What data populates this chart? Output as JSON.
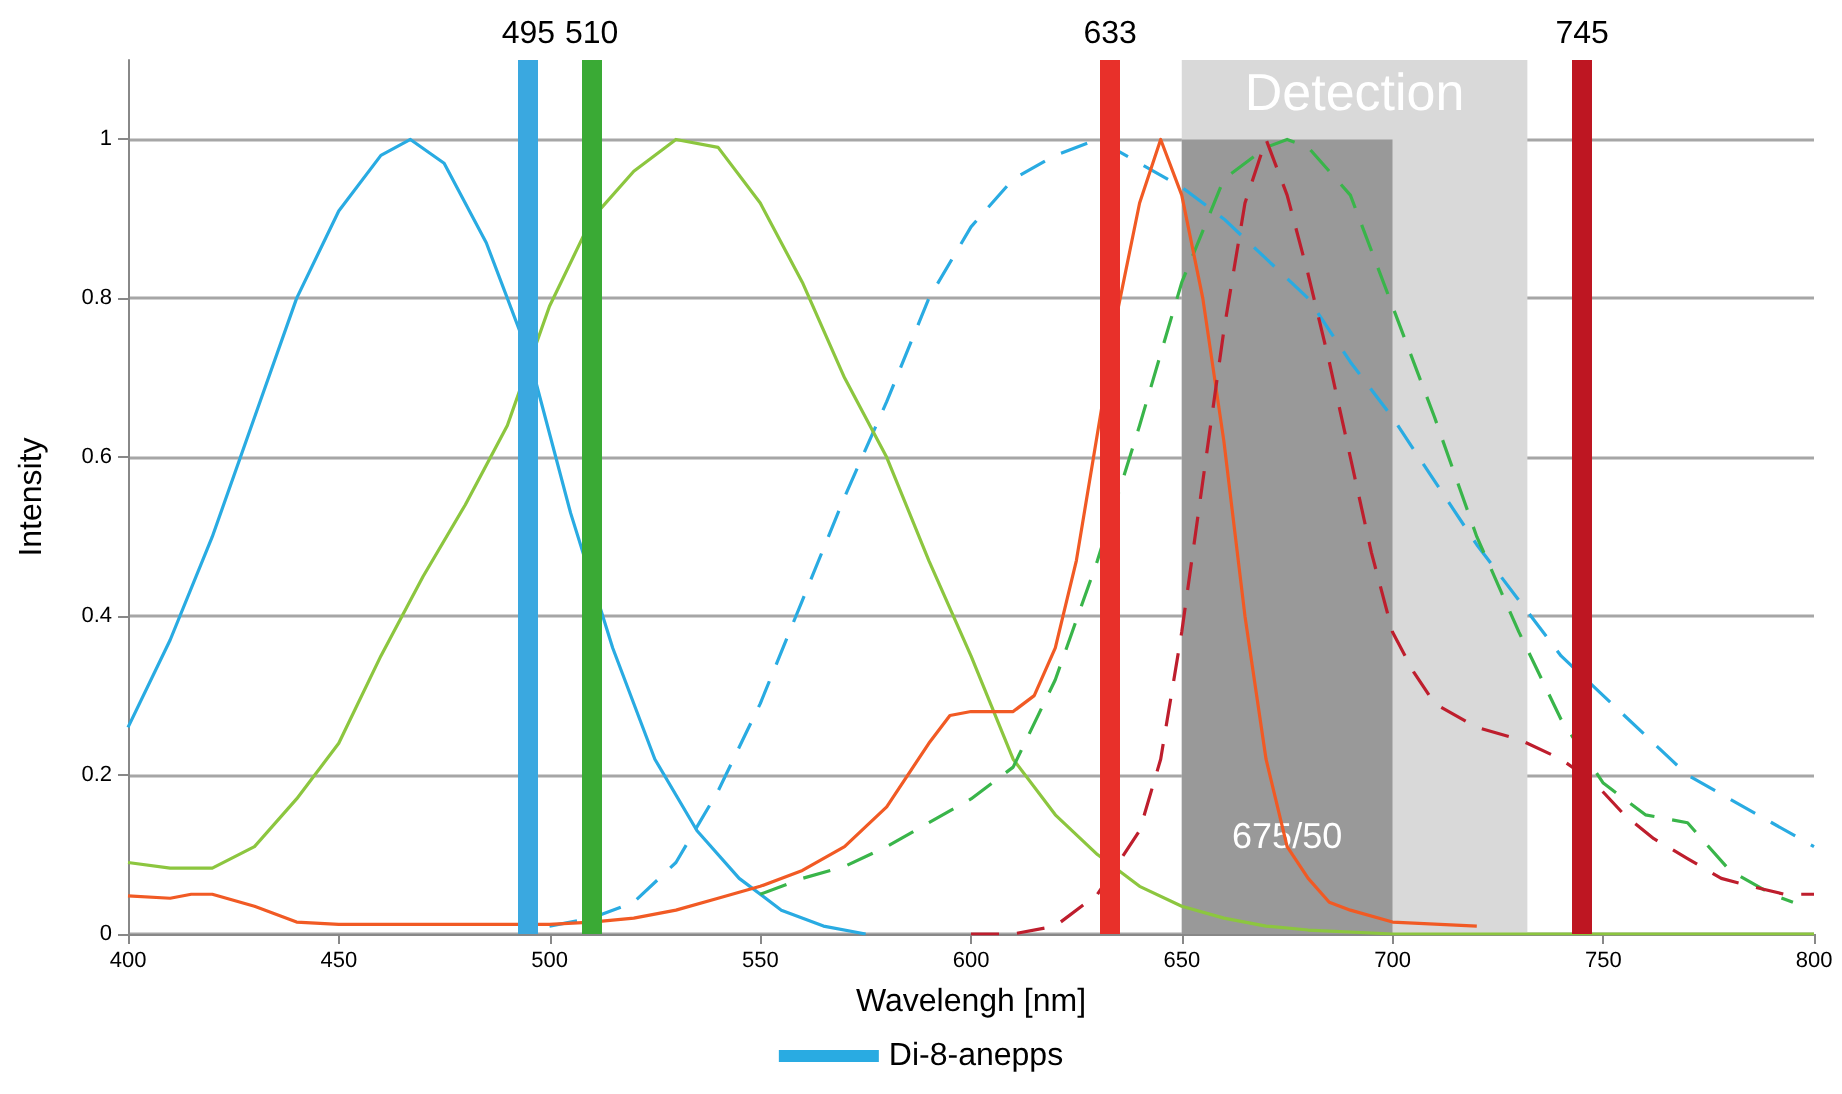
{
  "chart_data": {
    "type": "line",
    "xlabel": "Wavelengh [nm]",
    "ylabel": "Intensity",
    "xlim": [
      400,
      800
    ],
    "xticks": [
      400,
      450,
      500,
      550,
      600,
      650,
      700,
      750,
      800
    ],
    "ylim": [
      0,
      1.1
    ],
    "yticks": [
      0,
      0.2,
      0.4,
      0.6,
      0.8,
      1
    ],
    "grid": "y",
    "legend": "bottom",
    "marker": "none",
    "series": [
      {
        "name": "Di-8-anepps",
        "color": "#29abe2",
        "line_style": "solid",
        "x": [
          400,
          410,
          420,
          430,
          440,
          450,
          460,
          467,
          475,
          485,
          495,
          505,
          515,
          525,
          535,
          545,
          555,
          565,
          575
        ],
        "values": [
          0.26,
          0.37,
          0.5,
          0.65,
          0.8,
          0.91,
          0.98,
          1.0,
          0.97,
          0.87,
          0.73,
          0.53,
          0.36,
          0.22,
          0.13,
          0.07,
          0.03,
          0.01,
          0.0
        ]
      },
      {
        "color": "#29abe2",
        "line_style": "dashed",
        "x": [
          500,
          510,
          520,
          530,
          540,
          550,
          560,
          570,
          580,
          590,
          600,
          610,
          620,
          630,
          640,
          650,
          660,
          670,
          680,
          690,
          700,
          710,
          720,
          730,
          740,
          750,
          760,
          770,
          780,
          790,
          800
        ],
        "values": [
          0.01,
          0.02,
          0.04,
          0.09,
          0.18,
          0.29,
          0.42,
          0.55,
          0.67,
          0.8,
          0.89,
          0.95,
          0.98,
          1.0,
          0.97,
          0.94,
          0.9,
          0.85,
          0.8,
          0.72,
          0.65,
          0.57,
          0.49,
          0.42,
          0.35,
          0.3,
          0.25,
          0.2,
          0.17,
          0.14,
          0.11
        ]
      },
      {
        "color": "#8cc63f",
        "line_style": "solid",
        "x": [
          400,
          410,
          420,
          430,
          440,
          450,
          460,
          470,
          480,
          490,
          500,
          510,
          520,
          530,
          540,
          550,
          560,
          570,
          580,
          590,
          600,
          610,
          620,
          630,
          640,
          650,
          660,
          670,
          680,
          700,
          800
        ],
        "values": [
          0.09,
          0.083,
          0.083,
          0.11,
          0.17,
          0.24,
          0.35,
          0.45,
          0.54,
          0.64,
          0.79,
          0.9,
          0.96,
          1.0,
          0.99,
          0.92,
          0.82,
          0.7,
          0.6,
          0.47,
          0.35,
          0.22,
          0.15,
          0.1,
          0.06,
          0.035,
          0.02,
          0.01,
          0.005,
          0.0,
          0.0
        ]
      },
      {
        "color": "#39b54a",
        "line_style": "dashed",
        "x": [
          550,
          560,
          570,
          580,
          590,
          600,
          610,
          620,
          630,
          640,
          650,
          660,
          670,
          675,
          680,
          690,
          700,
          710,
          720,
          730,
          740,
          750,
          760,
          770,
          780,
          790,
          795
        ],
        "values": [
          0.05,
          0.07,
          0.085,
          0.11,
          0.14,
          0.17,
          0.21,
          0.32,
          0.47,
          0.64,
          0.82,
          0.95,
          0.99,
          1.0,
          0.99,
          0.93,
          0.79,
          0.65,
          0.5,
          0.38,
          0.27,
          0.19,
          0.15,
          0.14,
          0.08,
          0.05,
          0.04
        ]
      },
      {
        "color": "#f15a24",
        "line_style": "solid",
        "x": [
          400,
          410,
          415,
          420,
          430,
          440,
          450,
          500,
          510,
          520,
          530,
          540,
          550,
          560,
          570,
          580,
          590,
          595,
          600,
          610,
          615,
          620,
          625,
          630,
          635,
          640,
          645,
          650,
          655,
          660,
          665,
          670,
          675,
          680,
          685,
          690,
          700,
          720
        ],
        "values": [
          0.048,
          0.045,
          0.05,
          0.05,
          0.035,
          0.015,
          0.012,
          0.012,
          0.015,
          0.02,
          0.03,
          0.045,
          0.06,
          0.08,
          0.11,
          0.16,
          0.24,
          0.275,
          0.28,
          0.28,
          0.3,
          0.36,
          0.47,
          0.63,
          0.79,
          0.92,
          1.0,
          0.93,
          0.8,
          0.62,
          0.4,
          0.22,
          0.11,
          0.07,
          0.04,
          0.03,
          0.015,
          0.01
        ]
      },
      {
        "color": "#be1e2d",
        "line_style": "dashed",
        "x": [
          600,
          610,
          620,
          630,
          640,
          645,
          650,
          655,
          660,
          665,
          670,
          675,
          680,
          685,
          690,
          695,
          700,
          705,
          710,
          720,
          730,
          740,
          748,
          755,
          762,
          770,
          778,
          785,
          793,
          800
        ],
        "values": [
          0.0,
          0.0,
          0.01,
          0.05,
          0.13,
          0.22,
          0.38,
          0.57,
          0.76,
          0.92,
          1.0,
          0.93,
          0.83,
          0.72,
          0.6,
          0.48,
          0.38,
          0.33,
          0.29,
          0.26,
          0.245,
          0.22,
          0.19,
          0.15,
          0.12,
          0.095,
          0.07,
          0.06,
          0.05,
          0.05
        ]
      }
    ],
    "ref_lines": [
      {
        "axis": "x",
        "value": 495,
        "label": "495",
        "color": "#3aa8e0"
      },
      {
        "axis": "x",
        "value": 510,
        "label": "510",
        "color": "#3aaa35"
      },
      {
        "axis": "x",
        "value": 633,
        "label": "633",
        "color": "#e8302a"
      },
      {
        "axis": "x",
        "value": 745,
        "label": "745",
        "color": "#be1622"
      }
    ],
    "bands": [
      {
        "axis": "x",
        "from": 650,
        "to": 732,
        "label": "Detection",
        "color": "#d9d9d9"
      },
      {
        "axis": "x",
        "from": 650,
        "to": 700,
        "label": "675/50",
        "color": "#999999"
      }
    ]
  }
}
